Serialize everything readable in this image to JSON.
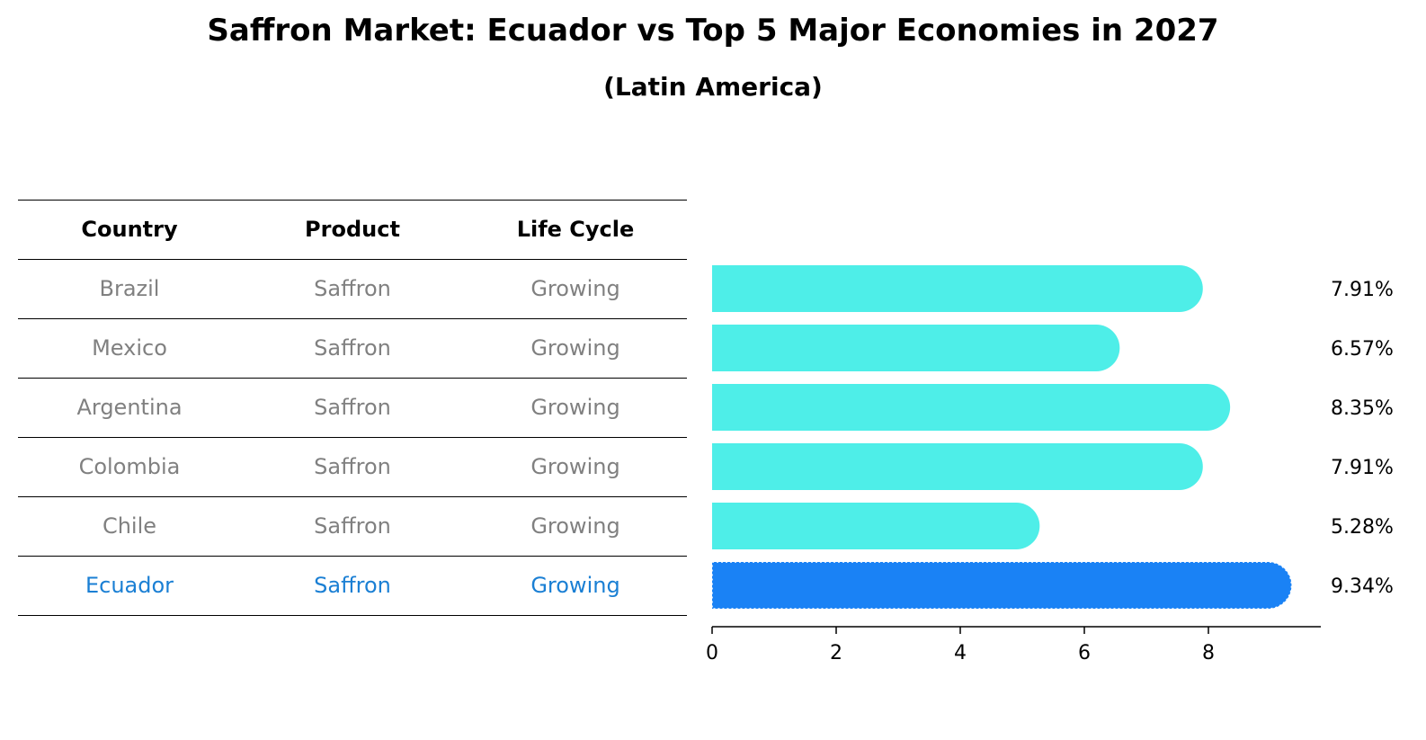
{
  "chart_data": {
    "type": "bar",
    "title": "Saffron Market: Ecuador vs Top 5 Major Economies in 2027",
    "subtitle": "(Latin America)",
    "columns": [
      "Country",
      "Product",
      "Life Cycle"
    ],
    "rows": [
      {
        "country": "Brazil",
        "product": "Saffron",
        "life_cycle": "Growing",
        "value": 7.91,
        "label": "7.91%"
      },
      {
        "country": "Mexico",
        "product": "Saffron",
        "life_cycle": "Growing",
        "value": 6.57,
        "label": "6.57%"
      },
      {
        "country": "Argentina",
        "product": "Saffron",
        "life_cycle": "Growing",
        "value": 8.35,
        "label": "8.35%"
      },
      {
        "country": "Colombia",
        "product": "Saffron",
        "life_cycle": "Growing",
        "value": 7.91,
        "label": "7.91%"
      },
      {
        "country": "Chile",
        "product": "Saffron",
        "life_cycle": "Growing",
        "value": 5.28,
        "label": "5.28%"
      },
      {
        "country": "Ecuador",
        "product": "Saffron",
        "life_cycle": "Growing",
        "value": 9.34,
        "label": "9.34%"
      }
    ],
    "highlight": "Ecuador",
    "xticks": [
      "0",
      "2",
      "4",
      "6",
      "8"
    ],
    "xlim": [
      0,
      9.8
    ],
    "grid": false,
    "colors": {
      "bar": "#4eeee8",
      "highlight_bar": "#1a82f5",
      "highlight_text": "#1a7fd4",
      "body_text": "#808080"
    }
  }
}
